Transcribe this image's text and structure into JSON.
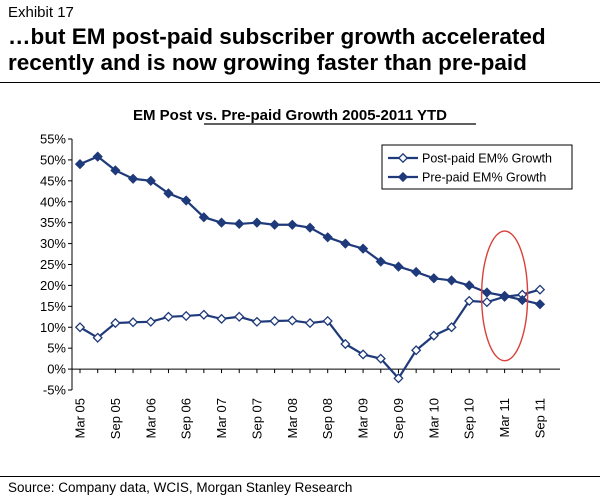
{
  "header": {
    "exhibit": "Exhibit 17",
    "title": "…but EM post-paid subscriber growth accelerated recently and is now growing faster than pre-paid"
  },
  "footer": {
    "source": "Source: Company data, WCIS, Morgan Stanley Research"
  },
  "colors": {
    "series": "#1f3a7a",
    "highlight": "#d9413a",
    "axis": "#000000"
  },
  "chart_data": {
    "type": "line",
    "title": "EM Post vs. Pre-paid Growth 2005-2011 YTD",
    "xlabel": "",
    "ylabel": "",
    "ylim": [
      -5,
      55
    ],
    "yticks": [
      -5,
      0,
      5,
      10,
      15,
      20,
      25,
      30,
      35,
      40,
      45,
      50,
      55
    ],
    "ytick_labels": [
      "-5%",
      "0%",
      "5%",
      "10%",
      "15%",
      "20%",
      "25%",
      "30%",
      "35%",
      "40%",
      "45%",
      "50%",
      "55%"
    ],
    "x_labels": [
      "Mar 05",
      "Sep 05",
      "Mar 06",
      "Sep 06",
      "Mar 07",
      "Sep 07",
      "Mar 08",
      "Sep 08",
      "Mar 09",
      "Sep 09",
      "Mar 10",
      "Sep 10",
      "Mar 11",
      "Sep 11"
    ],
    "x_points": 27,
    "legend_position": "top-right",
    "highlight": {
      "shape": "ellipse",
      "center_x_index": 24,
      "center_y": 17.5,
      "radius_x_points": 1.3,
      "radius_y": 15.5
    },
    "series": [
      {
        "name": "Post-paid EM% Growth",
        "marker": "diamond-open",
        "values": [
          10,
          7.5,
          11,
          11.2,
          11.3,
          12.5,
          12.7,
          13,
          12,
          12.5,
          11.3,
          11.5,
          11.6,
          11,
          11.5,
          6,
          3.5,
          2.5,
          -2.2,
          4.5,
          8,
          10,
          16.3,
          16,
          17.3,
          17.8,
          19
        ]
      },
      {
        "name": "Pre-paid EM% Growth",
        "marker": "diamond-filled",
        "values": [
          49,
          50.8,
          47.5,
          45.5,
          45,
          42,
          40.3,
          36.3,
          35,
          34.7,
          35,
          34.5,
          34.5,
          33.8,
          31.5,
          30,
          28.8,
          25.7,
          24.5,
          23.2,
          21.7,
          21.2,
          20,
          18.3,
          17.5,
          16.5,
          15.5
        ]
      }
    ]
  }
}
